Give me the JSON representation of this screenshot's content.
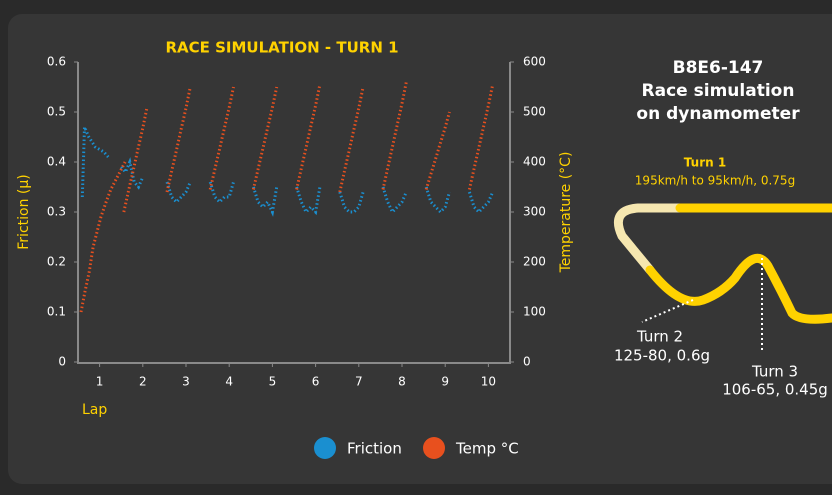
{
  "chart_data": {
    "type": "line",
    "title": "RACE SIMULATION - TURN 1",
    "xlabel": "Lap",
    "ylabel": "Friction (µ)",
    "y2label": "Temperature (°C)",
    "xlim": [
      0.5,
      10.5
    ],
    "xticks": [
      1,
      2,
      3,
      4,
      5,
      6,
      7,
      8,
      9,
      10
    ],
    "ylim": [
      0,
      0.6
    ],
    "yticks": [
      0,
      0.1,
      0.2,
      0.3,
      0.4,
      0.5,
      0.6
    ],
    "y2lim": [
      0,
      600
    ],
    "y2ticks": [
      0,
      100,
      200,
      300,
      400,
      500,
      600
    ],
    "legend": "bottom",
    "series": [
      {
        "name": "Friction",
        "color": "#1a8fd0",
        "x": [
          0.6,
          0.65,
          0.75,
          0.9,
          1.1,
          1.2,
          null,
          1.5,
          1.6,
          1.7,
          1.8,
          1.9,
          2.0,
          null,
          2.56,
          2.67,
          2.78,
          2.89,
          3,
          3.1,
          null,
          3.56,
          3.67,
          3.78,
          3.89,
          4,
          4.1,
          null,
          4.56,
          4.67,
          4.78,
          4.89,
          5,
          5.1,
          null,
          5.56,
          5.67,
          5.78,
          5.89,
          6,
          6.1,
          null,
          6.56,
          6.67,
          6.78,
          6.89,
          7,
          7.1,
          null,
          7.56,
          7.67,
          7.78,
          7.89,
          8,
          8.1,
          null,
          8.56,
          8.67,
          8.78,
          8.89,
          9,
          9.1,
          null,
          9.56,
          9.67,
          9.78,
          9.89,
          10,
          10.1
        ],
        "values": [
          0.33,
          0.47,
          0.45,
          0.43,
          0.42,
          0.41,
          null,
          0.39,
          0.38,
          0.4,
          0.36,
          0.35,
          0.37,
          null,
          0.36,
          0.33,
          0.32,
          0.33,
          0.34,
          0.36,
          null,
          0.36,
          0.33,
          0.32,
          0.33,
          0.33,
          0.36,
          null,
          0.35,
          0.32,
          0.31,
          0.32,
          0.3,
          0.35,
          null,
          0.35,
          0.32,
          0.3,
          0.31,
          0.3,
          0.35,
          null,
          0.34,
          0.31,
          0.3,
          0.3,
          0.31,
          0.34,
          null,
          0.35,
          0.32,
          0.3,
          0.31,
          0.32,
          0.34,
          null,
          0.35,
          0.32,
          0.31,
          0.3,
          0.31,
          0.34,
          null,
          0.34,
          0.31,
          0.3,
          0.31,
          0.32,
          0.34
        ]
      },
      {
        "name": "Temp °C",
        "color": "#e8501e",
        "axis": "y2",
        "x": [
          0.57,
          0.66,
          0.76,
          0.85,
          0.94,
          1.03,
          1.15,
          1.26,
          1.38,
          1.5,
          1.59,
          null,
          1.56,
          1.67,
          1.78,
          1.89,
          2,
          2.1,
          null,
          2.56,
          2.67,
          2.78,
          2.89,
          3,
          3.1,
          null,
          3.56,
          3.67,
          3.78,
          3.89,
          4,
          4.1,
          null,
          4.56,
          4.67,
          4.78,
          4.89,
          5,
          5.1,
          null,
          5.56,
          5.67,
          5.78,
          5.89,
          6,
          6.1,
          null,
          6.56,
          6.67,
          6.78,
          6.89,
          7,
          7.1,
          null,
          7.56,
          7.67,
          7.78,
          7.89,
          8,
          8.1,
          null,
          8.56,
          8.67,
          8.78,
          8.89,
          9,
          9.1,
          null,
          9.56,
          9.67,
          9.78,
          9.89,
          10,
          10.1
        ],
        "values": [
          100,
          140,
          180,
          230,
          260,
          290,
          320,
          345,
          365,
          385,
          400,
          null,
          300,
          342,
          384,
          426,
          468,
          510,
          null,
          340,
          382,
          424,
          466,
          508,
          550,
          null,
          345,
          386,
          427,
          468,
          509,
          550,
          null,
          345,
          386,
          427,
          468,
          509,
          550,
          null,
          345,
          387,
          429,
          471,
          513,
          555,
          null,
          340,
          382,
          424,
          466,
          508,
          550,
          null,
          345,
          388,
          431,
          474,
          517,
          560,
          null,
          345,
          376,
          407,
          438,
          469,
          500,
          null,
          345,
          387,
          429,
          471,
          513,
          555
        ]
      }
    ]
  },
  "panel": {
    "code": "B8E6-147",
    "line1": "Race simulation",
    "line2": "on dynamometer",
    "turn1": {
      "name": "Turn 1",
      "detail": "195km/h to 95km/h, 0.75g"
    },
    "turn2": {
      "name": "Turn 2",
      "detail": "125-80, 0.6g"
    },
    "turn3": {
      "name": "Turn 3",
      "detail": "106-65, 0.45g"
    }
  }
}
